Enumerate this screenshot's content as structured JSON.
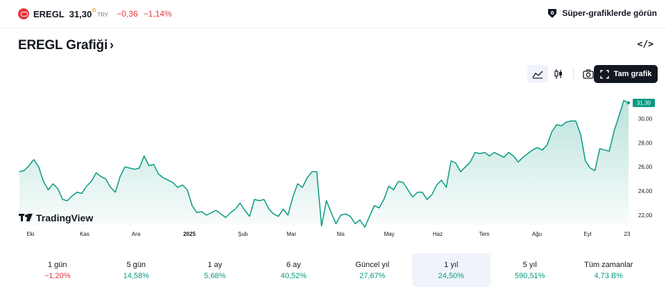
{
  "header": {
    "symbol": "EREGL",
    "price": "31,30",
    "price_marker": "D",
    "currency": "TRY",
    "change": "−0,36",
    "change_pct": "−1,14%",
    "super_charts_label": "Süper-grafiklerde görün"
  },
  "title": "EREGL Grafiği",
  "title_chevron": "›",
  "embed_icon_text": "</>",
  "toolbar": {
    "full_chart_label": "Tam grafik"
  },
  "watermark": "TradingView",
  "colors": {
    "accent": "#089981",
    "negative": "#e5363d",
    "dark": "#131722"
  },
  "icons": {
    "area_chart": "area-chart-icon",
    "candles": "candles-icon",
    "camera": "camera-icon",
    "fullscreen": "fullscreen-icon"
  },
  "chart_data": {
    "type": "area",
    "x_labels": [
      "Eki",
      "Kas",
      "Ara",
      "2025",
      "Şub",
      "Mar",
      "Nis",
      "May",
      "Haz",
      "Tem",
      "Ağu",
      "Eyl",
      "23"
    ],
    "y_ticks": [
      22,
      24,
      26,
      28,
      30
    ],
    "y_tick_labels": [
      "22,00",
      "24,00",
      "26,00",
      "28,00",
      "30,00"
    ],
    "ylim": [
      21.2,
      32.2
    ],
    "last_value_label": "31,30",
    "series": [
      {
        "values": [
          25.6,
          25.7,
          26.1,
          26.6,
          26.0,
          24.8,
          24.1,
          24.6,
          24.2,
          23.3,
          23.2,
          23.6,
          23.9,
          23.8,
          24.4,
          24.8,
          25.5,
          25.2,
          25.0,
          24.3,
          23.9,
          25.2,
          26.0,
          25.9,
          25.8,
          25.9,
          26.9,
          26.1,
          26.2,
          25.4,
          25.1,
          24.9,
          24.7,
          24.3,
          24.5,
          24.1,
          22.8,
          22.2,
          22.3,
          22.0,
          22.2,
          22.4,
          22.1,
          21.8,
          22.2,
          22.5,
          23.0,
          22.4,
          21.9,
          23.3,
          23.2,
          23.3,
          22.5,
          22.1,
          21.9,
          22.5,
          22.0,
          23.5,
          24.6,
          24.3,
          25.1,
          25.6,
          25.6,
          21.1,
          23.2,
          22.2,
          21.3,
          22.0,
          22.1,
          21.9,
          21.3,
          21.6,
          21.0,
          21.9,
          22.8,
          22.6,
          23.3,
          24.4,
          24.1,
          24.8,
          24.7,
          24.1,
          23.5,
          23.9,
          23.9,
          23.3,
          23.7,
          24.5,
          24.9,
          24.3,
          26.5,
          26.3,
          25.6,
          26.0,
          26.4,
          27.2,
          27.1,
          27.2,
          26.9,
          27.2,
          27.0,
          26.8,
          27.2,
          26.9,
          26.4,
          26.8,
          27.1,
          27.4,
          27.6,
          27.4,
          27.8,
          28.9,
          29.5,
          29.4,
          29.7,
          29.8,
          29.8,
          28.7,
          26.5,
          25.9,
          25.7,
          27.5,
          27.4,
          27.3,
          29.0,
          30.2,
          31.5,
          31.3
        ]
      }
    ]
  },
  "periods": [
    {
      "label": "1 gün",
      "value": "−1,20%",
      "dir": "neg"
    },
    {
      "label": "5 gün",
      "value": "14,58%",
      "dir": "pos"
    },
    {
      "label": "1 ay",
      "value": "5,68%",
      "dir": "pos"
    },
    {
      "label": "6 ay",
      "value": "40,52%",
      "dir": "pos"
    },
    {
      "label": "Güncel yıl",
      "value": "27,67%",
      "dir": "pos"
    },
    {
      "label": "1 yıl",
      "value": "24,50%",
      "dir": "pos"
    },
    {
      "label": "5 yıl",
      "value": "590,51%",
      "dir": "pos"
    },
    {
      "label": "Tüm zamanlar",
      "value": "4,73 B%",
      "dir": "pos"
    }
  ],
  "selected_period_index": 5
}
